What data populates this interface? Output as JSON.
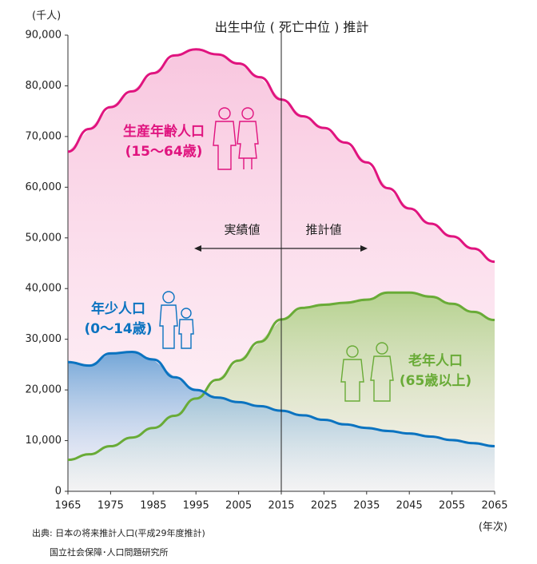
{
  "chart_data": {
    "type": "line",
    "title": "出生中位 ( 死亡中位 ) 推計",
    "y_unit": "(千人)",
    "x_unit": "(年次)",
    "x": [
      1965,
      1970,
      1975,
      1980,
      1985,
      1990,
      1995,
      2000,
      2005,
      2010,
      2015,
      2020,
      2025,
      2030,
      2035,
      2040,
      2045,
      2050,
      2055,
      2060,
      2065
    ],
    "series": [
      {
        "name": "生産年齢人口",
        "sub": "(15〜64歳)",
        "color": "#e0147f",
        "values": [
          67000,
          71500,
          75800,
          78900,
          82500,
          86000,
          87200,
          86200,
          84400,
          81700,
          77300,
          74000,
          71700,
          68800,
          64900,
          59800,
          55800,
          52800,
          50300,
          47900,
          45300
        ]
      },
      {
        "name": "老年人口",
        "sub": "(65歳以上)",
        "color": "#69ab37",
        "values": [
          6200,
          7300,
          8900,
          10600,
          12500,
          14900,
          18300,
          22000,
          25800,
          29500,
          33900,
          36200,
          36800,
          37200,
          37800,
          39200,
          39200,
          38400,
          37000,
          35400,
          33800
        ]
      },
      {
        "name": "年少人口",
        "sub": "(0〜14歳)",
        "color": "#0b73c0",
        "values": [
          25500,
          24800,
          27200,
          27500,
          26000,
          22500,
          20000,
          18500,
          17600,
          16800,
          15900,
          15000,
          14100,
          13200,
          12500,
          11900,
          11400,
          10800,
          10100,
          9500,
          8900
        ]
      }
    ],
    "divider_x": 2015,
    "actual_label": "実績値",
    "projection_label": "推計値",
    "xlim": [
      1965,
      2065
    ],
    "xticks": [
      1965,
      1975,
      1985,
      1995,
      2005,
      2015,
      2025,
      2035,
      2045,
      2055,
      2065
    ],
    "ylim": [
      0,
      90000
    ],
    "yticks": [
      0,
      {
        "value": 10000,
        "label": "10,000"
      },
      {
        "value": 20000,
        "label": "20,000"
      },
      {
        "value": 30000,
        "label": "30,000"
      },
      {
        "value": 40000,
        "label": "40,000"
      },
      {
        "value": 50000,
        "label": "50,000"
      },
      {
        "value": 60000,
        "label": "60,000"
      },
      {
        "value": 70000,
        "label": "70,000"
      },
      {
        "value": 80000,
        "label": "80,000"
      },
      {
        "value": 90000,
        "label": "90,000"
      }
    ],
    "source": [
      "出典: 日本の将来推計人口(平成29年度推計)",
      "国立社会保障･人口問題研究所"
    ]
  }
}
